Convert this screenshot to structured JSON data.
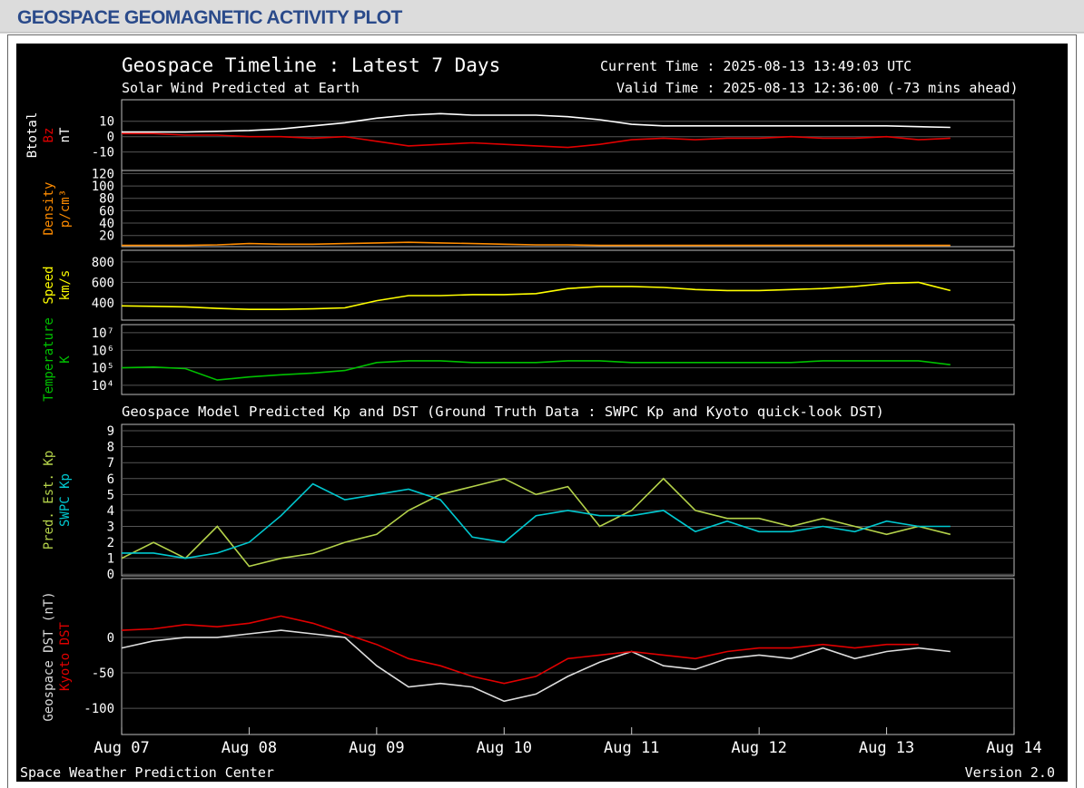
{
  "header": {
    "title": "GEOSPACE GEOMAGNETIC ACTIVITY PLOT"
  },
  "plot": {
    "title": "Geospace Timeline : Latest 7 Days",
    "subtitle": "Solar Wind Predicted at Earth",
    "current_time": "Current Time : 2025-08-13 13:49:03 UTC",
    "valid_time": "Valid Time : 2025-08-13 12:36:00 (-73 mins ahead)",
    "model_title": "Geospace Model Predicted Kp and DST (Ground Truth Data : SWPC Kp and Kyoto quick-look DST)",
    "footer_left": "Space Weather Prediction Center",
    "footer_right": "Version 2.0"
  },
  "chart_data": [
    {
      "type": "line",
      "ylabel": "nT",
      "x": [
        0,
        0.25,
        0.5,
        0.75,
        1,
        1.25,
        1.5,
        1.75,
        2,
        2.25,
        2.5,
        2.75,
        3,
        3.25,
        3.5,
        3.75,
        4,
        4.25,
        4.5,
        4.75,
        5,
        5.25,
        5.5,
        5.75,
        6,
        6.25,
        6.5
      ],
      "xlim": [
        0,
        7
      ],
      "ylim": [
        -22,
        24
      ],
      "yticks": [
        -10,
        0,
        10
      ],
      "grid": true,
      "series": [
        {
          "name": "Btotal",
          "color": "#ffffff",
          "values": [
            3,
            3,
            3,
            3.5,
            4,
            5,
            7,
            9,
            12,
            14,
            15,
            14,
            14,
            14,
            13,
            11,
            8,
            7,
            7,
            7,
            7,
            7,
            7,
            7,
            7,
            6.5,
            6
          ]
        },
        {
          "name": "Bz",
          "color": "#e00000",
          "values": [
            2,
            2,
            1,
            1,
            0,
            0,
            -1,
            0,
            -3,
            -6,
            -5,
            -4,
            -5,
            -6,
            -7,
            -5,
            -2,
            -1,
            -2,
            -1,
            -1,
            0,
            -1,
            -1,
            0,
            -2,
            -1
          ]
        }
      ]
    },
    {
      "type": "line",
      "ylabel": "p/cm³",
      "x": [
        0,
        0.25,
        0.5,
        0.75,
        1,
        1.25,
        1.5,
        1.75,
        2,
        2.25,
        2.5,
        2.75,
        3,
        3.25,
        3.5,
        3.75,
        4,
        4.25,
        4.5,
        4.75,
        5,
        5.25,
        5.5,
        5.75,
        6,
        6.25,
        6.5
      ],
      "xlim": [
        0,
        7
      ],
      "ylim": [
        2,
        125
      ],
      "yticks": [
        20,
        40,
        60,
        80,
        100,
        120
      ],
      "grid": true,
      "series": [
        {
          "name": "Density",
          "color": "#ff8c00",
          "values": [
            4,
            4,
            4,
            5,
            7,
            6,
            6,
            7,
            8,
            9,
            8,
            7,
            6,
            5,
            5,
            4,
            4,
            4,
            4,
            4,
            4,
            4,
            4,
            4,
            4,
            4,
            4
          ]
        }
      ]
    },
    {
      "type": "line",
      "ylabel": "km/s",
      "x": [
        0,
        0.25,
        0.5,
        0.75,
        1,
        1.25,
        1.5,
        1.75,
        2,
        2.25,
        2.5,
        2.75,
        3,
        3.25,
        3.5,
        3.75,
        4,
        4.25,
        4.5,
        4.75,
        5,
        5.25,
        5.5,
        5.75,
        6,
        6.25,
        6.5
      ],
      "xlim": [
        0,
        7
      ],
      "ylim": [
        230,
        915
      ],
      "yticks": [
        400,
        600,
        800
      ],
      "grid": true,
      "series": [
        {
          "name": "Speed",
          "color": "#ffff00",
          "values": [
            370,
            365,
            360,
            345,
            335,
            335,
            340,
            350,
            420,
            470,
            470,
            480,
            480,
            490,
            540,
            560,
            560,
            550,
            530,
            520,
            520,
            530,
            540,
            560,
            590,
            600,
            520
          ]
        }
      ]
    },
    {
      "type": "line",
      "ylabel": "K",
      "yscale": "log",
      "x": [
        0,
        0.25,
        0.5,
        0.75,
        1,
        1.25,
        1.5,
        1.75,
        2,
        2.25,
        2.5,
        2.75,
        3,
        3.25,
        3.5,
        3.75,
        4,
        4.25,
        4.5,
        4.75,
        5,
        5.25,
        5.5,
        5.75,
        6,
        6.25,
        6.5
      ],
      "xlim": [
        0,
        7
      ],
      "ylim": [
        3000,
        29000000
      ],
      "yticks": [
        {
          "value": 10000,
          "label": "10⁴"
        },
        {
          "value": 100000,
          "label": "10⁵"
        },
        {
          "value": 1000000,
          "label": "10⁶"
        },
        {
          "value": 10000000,
          "label": "10⁷"
        }
      ],
      "grid": true,
      "series": [
        {
          "name": "Temperature",
          "color": "#00c000",
          "values": [
            100000,
            110000,
            90000,
            20000,
            30000,
            40000,
            50000,
            70000,
            200000,
            250000,
            250000,
            200000,
            200000,
            200000,
            250000,
            250000,
            200000,
            200000,
            200000,
            200000,
            200000,
            200000,
            250000,
            250000,
            250000,
            250000,
            150000
          ]
        }
      ]
    },
    {
      "type": "line",
      "x": [
        0,
        0.25,
        0.5,
        0.75,
        1,
        1.25,
        1.5,
        1.75,
        2,
        2.25,
        2.5,
        2.75,
        3,
        3.25,
        3.5,
        3.75,
        4,
        4.25,
        4.5,
        4.75,
        5,
        5.25,
        5.5,
        5.75,
        6,
        6.25,
        6.5
      ],
      "xlim": [
        0,
        7
      ],
      "ylim": [
        -0.1,
        9.4
      ],
      "yticks": [
        0,
        1,
        2,
        3,
        4,
        5,
        6,
        7,
        8,
        9
      ],
      "grid": true,
      "series": [
        {
          "name": "Pred. Est. Kp",
          "color": "#b4d24a",
          "values": [
            1,
            2,
            1,
            3,
            0.5,
            1,
            1.3,
            2,
            2.5,
            4,
            5,
            5.5,
            6,
            5,
            5.5,
            3,
            4,
            6,
            4,
            3.5,
            3.5,
            3,
            3.5,
            3,
            2.5,
            3,
            2.5
          ]
        },
        {
          "name": "SWPC Kp",
          "color": "#00c8d0",
          "values": [
            1.33,
            1.33,
            1,
            1.33,
            2,
            3.67,
            5.67,
            4.67,
            5,
            5.33,
            4.67,
            2.33,
            2,
            3.67,
            4,
            3.67,
            3.67,
            4,
            2.67,
            3.33,
            2.67,
            2.67,
            3,
            2.67,
            3.33,
            3,
            3
          ]
        }
      ]
    },
    {
      "type": "line",
      "x": [
        0,
        0.25,
        0.5,
        0.75,
        1,
        1.25,
        1.5,
        1.75,
        2,
        2.25,
        2.5,
        2.75,
        3,
        3.25,
        3.5,
        3.75,
        4,
        4.25,
        4.5,
        4.75,
        5,
        5.25,
        5.5,
        5.75,
        6,
        6.25,
        6.5
      ],
      "xlim": [
        0,
        7
      ],
      "ylim": [
        -137,
        83
      ],
      "yticks": [
        -100,
        -50,
        0
      ],
      "grid": true,
      "xticks": [
        {
          "value": 0,
          "label": "Aug 07"
        },
        {
          "value": 1,
          "label": "Aug 08"
        },
        {
          "value": 2,
          "label": "Aug 09"
        },
        {
          "value": 3,
          "label": "Aug 10"
        },
        {
          "value": 4,
          "label": "Aug 11"
        },
        {
          "value": 5,
          "label": "Aug 12"
        },
        {
          "value": 6,
          "label": "Aug 13"
        },
        {
          "value": 7,
          "label": "Aug 14"
        }
      ],
      "series": [
        {
          "name": "Geospace DST (nT)",
          "color": "#dddddd",
          "values": [
            -15,
            -5,
            0,
            0,
            5,
            10,
            5,
            0,
            -40,
            -70,
            -65,
            -70,
            -90,
            -80,
            -55,
            -35,
            -20,
            -40,
            -45,
            -30,
            -25,
            -30,
            -15,
            -30,
            -20,
            -15,
            -20
          ]
        },
        {
          "name": "Kyoto DST",
          "color": "#e00000",
          "values": [
            10,
            12,
            18,
            15,
            20,
            30,
            20,
            5,
            -10,
            -30,
            -40,
            -55,
            -65,
            -55,
            -30,
            -25,
            -20,
            -25,
            -30,
            -20,
            -15,
            -15,
            -10,
            -15,
            -10,
            -10,
            null
          ]
        }
      ]
    }
  ]
}
